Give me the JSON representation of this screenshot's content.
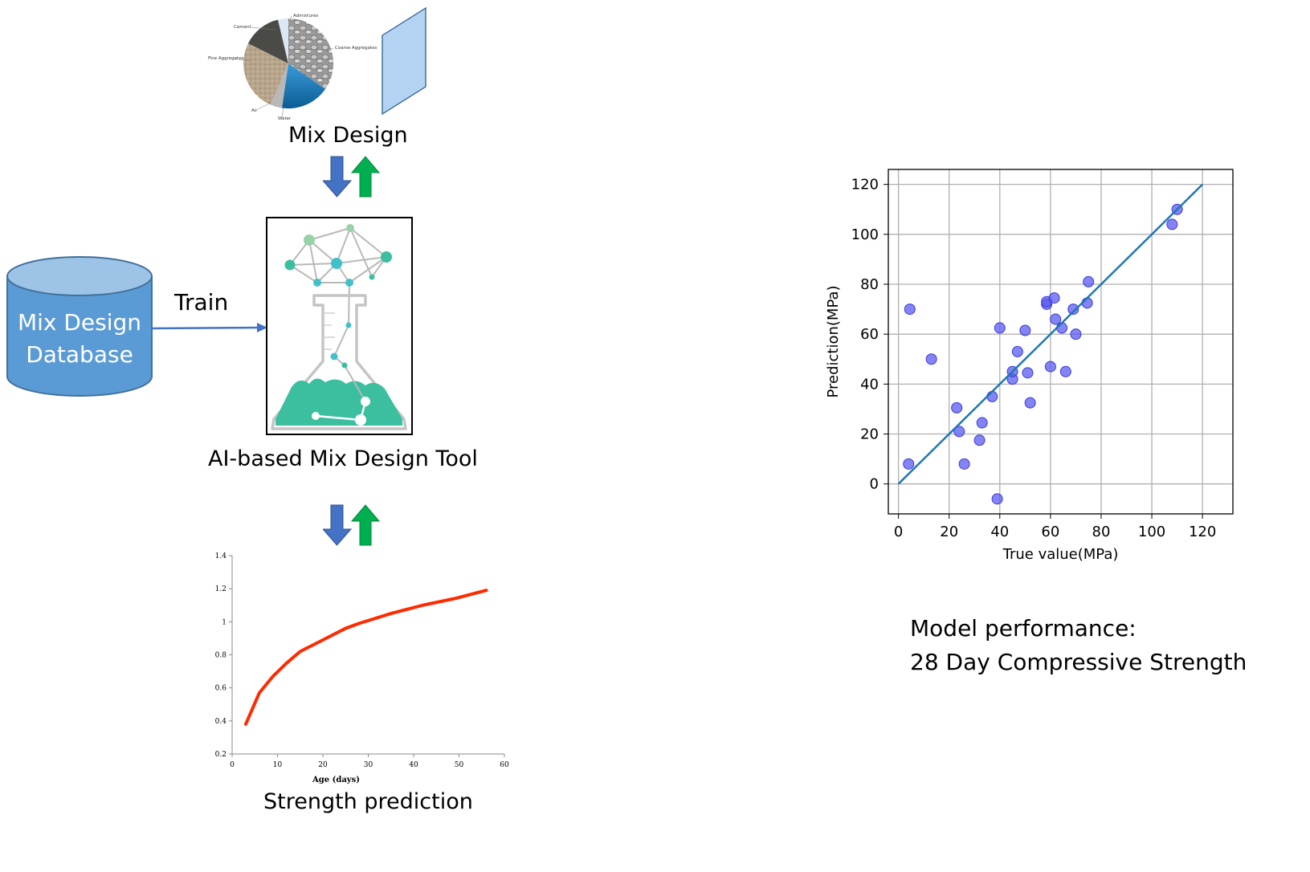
{
  "mix_design": {
    "caption": "Mix Design",
    "pie_labels": [
      "Admixtures",
      "Cement",
      "Fine Aggregates",
      "Coarse Aggregates",
      "Air",
      "Water"
    ]
  },
  "database": {
    "line1": "Mix Design",
    "line2": "Database"
  },
  "train_label": "Train",
  "tool": {
    "caption": "AI-based Mix Design Tool"
  },
  "strength": {
    "caption": "Strength prediction"
  },
  "performance": {
    "line1": "Model performance:",
    "line2": "28 Day Compressive Strength"
  },
  "colors": {
    "db_fill": "#5b9bd5",
    "db_top": "#9dc3e6",
    "db_stroke": "#41719c",
    "arrow_down": "#4472c4",
    "arrow_up": "#00b050",
    "flask_teal": "#3bbf9f",
    "curve_red": "#ff2a00",
    "scatter_point": "#5b5bf0",
    "fit_line": "#1f77b4"
  },
  "chart_data": [
    {
      "type": "line",
      "title": "",
      "xlabel": "Age (days)",
      "ylabel": "",
      "xlim": [
        0,
        60
      ],
      "ylim": [
        0.2,
        1.4
      ],
      "xticks": [
        0,
        10,
        20,
        30,
        40,
        50,
        60
      ],
      "yticks": [
        0.2,
        0.4,
        0.6,
        0.8,
        1,
        1.2,
        1.4
      ],
      "grid": false,
      "series": [
        {
          "x": [
            3,
            6,
            9,
            12,
            15,
            20,
            25,
            28,
            35,
            42,
            49,
            56
          ],
          "y": [
            0.38,
            0.57,
            0.67,
            0.75,
            0.82,
            0.89,
            0.96,
            0.99,
            1.05,
            1.1,
            1.14,
            1.19
          ]
        }
      ]
    },
    {
      "type": "scatter",
      "title": "",
      "xlabel": "True value(MPa)",
      "ylabel": "Prediction(MPa)",
      "xlim": [
        -4,
        132
      ],
      "ylim": [
        -12,
        126
      ],
      "xticks": [
        0,
        20,
        40,
        60,
        80,
        100,
        120
      ],
      "yticks": [
        0,
        20,
        40,
        60,
        80,
        100,
        120
      ],
      "grid": true,
      "reference_line": {
        "x": [
          0,
          120
        ],
        "y": [
          0,
          120
        ]
      },
      "points": [
        [
          4,
          8
        ],
        [
          4.5,
          70
        ],
        [
          13,
          50
        ],
        [
          23,
          30.5
        ],
        [
          24,
          21
        ],
        [
          26,
          8
        ],
        [
          32,
          17.5
        ],
        [
          33,
          24.5
        ],
        [
          37,
          35
        ],
        [
          39,
          -6
        ],
        [
          40,
          62.5
        ],
        [
          45,
          42
        ],
        [
          45,
          45
        ],
        [
          47,
          53
        ],
        [
          50,
          61.5
        ],
        [
          51,
          44.5
        ],
        [
          52,
          32.5
        ],
        [
          58.5,
          72
        ],
        [
          58.5,
          73
        ],
        [
          60,
          47
        ],
        [
          61.5,
          74.5
        ],
        [
          62,
          66
        ],
        [
          64.5,
          62.5
        ],
        [
          66,
          45
        ],
        [
          69,
          70
        ],
        [
          70,
          60
        ],
        [
          74.5,
          72.5
        ],
        [
          75,
          81
        ],
        [
          108,
          104
        ],
        [
          110,
          110
        ]
      ]
    }
  ]
}
